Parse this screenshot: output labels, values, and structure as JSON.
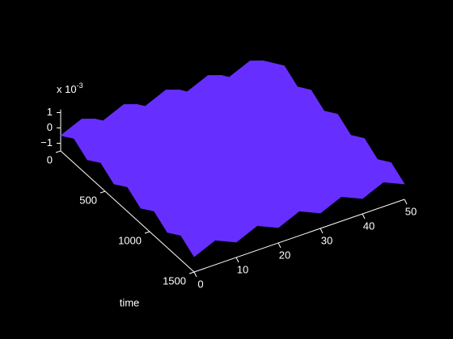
{
  "chart_data": {
    "type": "surface",
    "x": [
      0,
      5,
      10,
      15,
      20,
      25,
      30,
      35,
      40,
      45,
      50
    ],
    "time": [
      0,
      150,
      300,
      450,
      600,
      750,
      900,
      1050,
      1200,
      1350,
      1500
    ],
    "z": [
      [
        -0.5,
        0.1,
        -0.5,
        0.1,
        -0.5,
        0.1,
        -0.5,
        0.1,
        -0.5,
        0.1,
        -0.5
      ],
      [
        0.1,
        0.9,
        0.1,
        0.9,
        0.1,
        0.9,
        0.1,
        0.9,
        0.1,
        0.9,
        0.1
      ],
      [
        -0.5,
        0.1,
        -0.5,
        0.1,
        -0.5,
        0.1,
        -0.5,
        0.1,
        -0.5,
        0.1,
        -0.5
      ],
      [
        0.1,
        0.9,
        0.1,
        0.9,
        0.1,
        0.9,
        0.1,
        0.9,
        0.1,
        0.9,
        0.1
      ],
      [
        -0.5,
        0.1,
        -0.5,
        0.1,
        -0.5,
        0.1,
        -0.5,
        0.1,
        -0.5,
        0.1,
        -0.5
      ],
      [
        0.1,
        0.9,
        0.1,
        0.9,
        0.1,
        0.9,
        0.1,
        0.9,
        0.1,
        0.9,
        0.1
      ],
      [
        -0.5,
        0.1,
        -0.5,
        0.1,
        -0.5,
        0.1,
        -0.5,
        0.1,
        -0.5,
        0.1,
        -0.5
      ],
      [
        0.1,
        0.9,
        0.1,
        0.9,
        0.1,
        0.9,
        0.1,
        0.9,
        0.1,
        0.9,
        0.1
      ],
      [
        -0.5,
        0.1,
        -0.5,
        0.1,
        -0.5,
        0.1,
        -0.5,
        0.1,
        -0.5,
        0.1,
        -0.5
      ],
      [
        0.1,
        0.9,
        0.1,
        0.9,
        0.1,
        0.9,
        0.1,
        0.9,
        0.1,
        0.9,
        0.1
      ],
      [
        -0.5,
        0.1,
        -0.5,
        0.1,
        -0.5,
        0.1,
        -0.5,
        0.1,
        -0.5,
        0.1,
        -0.5
      ]
    ],
    "xlim": [
      0,
      50
    ],
    "xticks": [
      0,
      10,
      20,
      30,
      40,
      50
    ],
    "timelim": [
      0,
      1500
    ],
    "timeticks": [
      0,
      500,
      1000,
      1500
    ],
    "zlim": [
      -1.5,
      1.2
    ],
    "zticks": [
      {
        "value": -1,
        "label": "−1"
      },
      0,
      1
    ],
    "time_label": "time",
    "z_exponent_base": "x 10",
    "z_exponent_power": "-3",
    "colormap": [
      "#00ffff",
      "#3040ff",
      "#ff00ff",
      "#ff0050"
    ]
  }
}
